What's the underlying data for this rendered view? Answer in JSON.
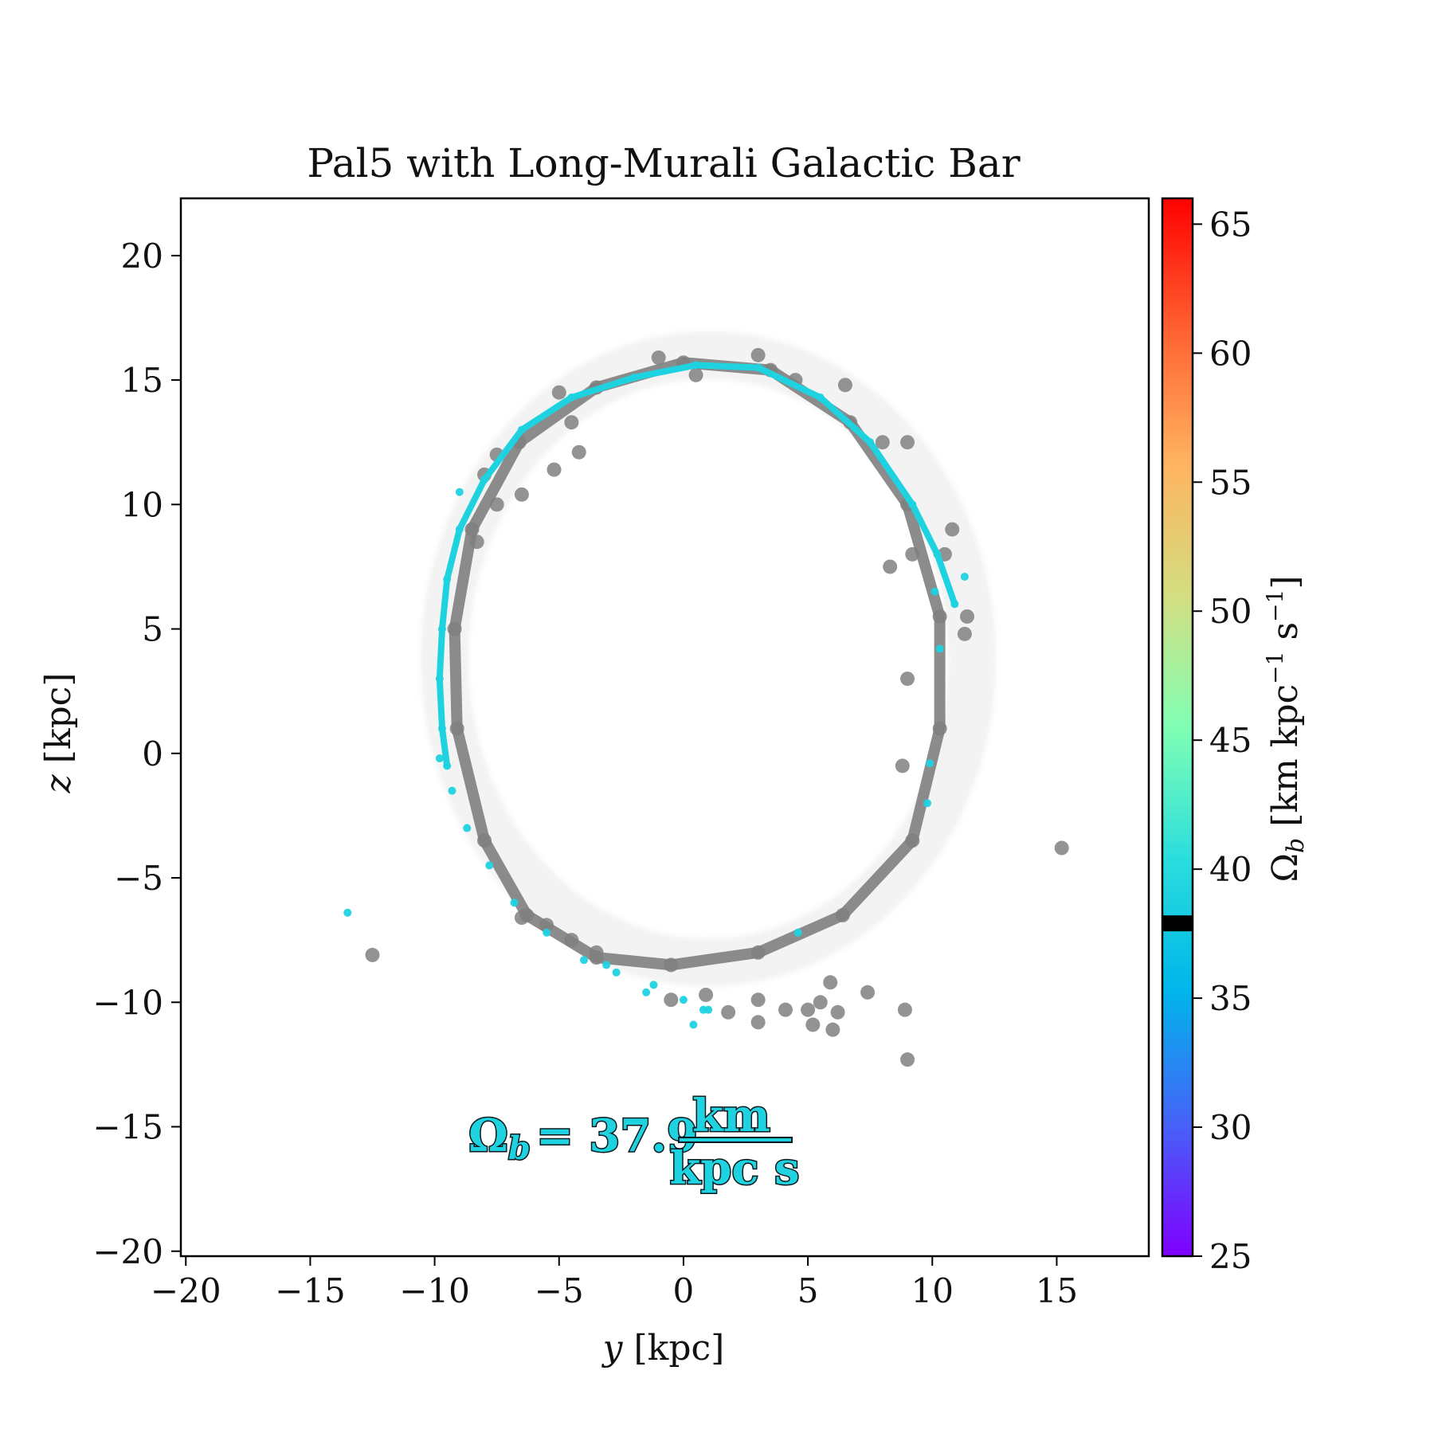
{
  "chart_data": {
    "type": "scatter",
    "title": "Pal5 with Long-Murali Galactic Bar",
    "xlabel_var": "y",
    "xlabel_unit": "[kpc]",
    "ylabel_var": "z",
    "ylabel_unit": "[kpc]",
    "xlim": [
      -20.2,
      18.7
    ],
    "ylim": [
      -20.2,
      22.3
    ],
    "xticks": [
      -20,
      -15,
      -10,
      -5,
      0,
      5,
      10,
      15
    ],
    "yticks": [
      20,
      15,
      10,
      5,
      0,
      -5,
      -10,
      -15,
      -20
    ],
    "grid": false,
    "colorbar": {
      "label": "Ω_b [km kpc⁻¹ s⁻¹]",
      "label_sym": "Ω",
      "label_sub": "b",
      "label_rest": " [km kpc",
      "label_exp1": "−1",
      "label_mid": " s",
      "label_exp2": "−1",
      "label_end": "]",
      "range": [
        25,
        66
      ],
      "ticks": [
        25,
        30,
        35,
        40,
        45,
        50,
        55,
        60,
        65
      ],
      "colormap": "rainbow",
      "marker_value": 37.9
    },
    "annotation": {
      "lhs": "Ω",
      "lhs_sub": "b",
      "equals": "= 37.9",
      "numerator": "km",
      "denominator": "kpc s",
      "value": 37.9
    },
    "series": [
      {
        "color": "#808080",
        "points": [
          [
            -8.0,
            -3.5
          ],
          [
            -9.1,
            1.0
          ],
          [
            -9.2,
            5.0
          ],
          [
            -8.5,
            9.0
          ],
          [
            -6.6,
            12.5
          ],
          [
            -3.5,
            14.7
          ],
          [
            0.0,
            15.7
          ],
          [
            3.5,
            15.4
          ],
          [
            6.7,
            13.3
          ],
          [
            9.0,
            10.0
          ],
          [
            10.3,
            5.5
          ],
          [
            10.3,
            1.0
          ],
          [
            9.2,
            -3.5
          ],
          [
            6.4,
            -6.5
          ],
          [
            3.0,
            -8.0
          ],
          [
            -0.5,
            -8.5
          ],
          [
            -3.5,
            -8.2
          ],
          [
            -6.3,
            -6.5
          ],
          [
            -5.0,
            14.5
          ],
          [
            -1.0,
            15.9
          ],
          [
            3.0,
            16.0
          ],
          [
            6.5,
            14.8
          ],
          [
            9.0,
            12.5
          ],
          [
            10.8,
            9.0
          ],
          [
            11.4,
            5.5
          ],
          [
            -7.5,
            12.0
          ],
          [
            -4.5,
            13.3
          ],
          [
            0.5,
            15.2
          ],
          [
            4.5,
            15.0
          ],
          [
            8.0,
            12.5
          ],
          [
            10.5,
            8.0
          ],
          [
            11.3,
            4.8
          ],
          [
            -4.2,
            12.1
          ],
          [
            -5.2,
            11.4
          ],
          [
            -6.5,
            10.4
          ],
          [
            -7.5,
            10.0
          ],
          [
            -8.3,
            8.5
          ],
          [
            0.9,
            -9.7
          ],
          [
            3.0,
            -9.9
          ],
          [
            5.5,
            -10.0
          ],
          [
            -0.5,
            -9.9
          ],
          [
            1.8,
            -10.4
          ],
          [
            3.0,
            -10.8
          ],
          [
            -5.5,
            -6.9
          ],
          [
            -6.5,
            -6.6
          ],
          [
            -4.5,
            -7.5
          ],
          [
            -3.5,
            -8.0
          ],
          [
            -12.5,
            -8.1
          ],
          [
            4.1,
            -10.3
          ],
          [
            5.0,
            -10.3
          ],
          [
            5.2,
            -10.9
          ],
          [
            6.2,
            -10.4
          ],
          [
            6.0,
            -11.1
          ],
          [
            5.9,
            -9.2
          ],
          [
            7.4,
            -9.6
          ],
          [
            8.9,
            -10.3
          ],
          [
            9.0,
            -12.3
          ],
          [
            15.2,
            -3.8
          ],
          [
            9.2,
            8.0
          ],
          [
            9.0,
            3.0
          ],
          [
            8.8,
            -0.5
          ],
          [
            8.3,
            7.5
          ],
          [
            -8.0,
            11.2
          ]
        ]
      },
      {
        "color": "#1fd2e0",
        "points": [
          [
            -9.5,
            -0.5
          ],
          [
            -9.7,
            1.0
          ],
          [
            -9.8,
            3.0
          ],
          [
            -9.7,
            5.0
          ],
          [
            -9.5,
            7.0
          ],
          [
            -9.0,
            9.0
          ],
          [
            -8.0,
            11.0
          ],
          [
            -6.5,
            13.0
          ],
          [
            -4.5,
            14.3
          ],
          [
            -2.0,
            15.1
          ],
          [
            0.5,
            15.6
          ],
          [
            3.0,
            15.5
          ],
          [
            5.5,
            14.3
          ],
          [
            7.5,
            12.5
          ],
          [
            9.2,
            10.0
          ],
          [
            10.2,
            8.0
          ],
          [
            10.9,
            6.0
          ],
          [
            -9.3,
            -1.5
          ],
          [
            -8.7,
            -3.0
          ],
          [
            -7.8,
            -4.5
          ],
          [
            -6.8,
            -6.0
          ],
          [
            -5.5,
            -7.2
          ],
          [
            -4.0,
            -8.3
          ],
          [
            -2.7,
            -8.8
          ],
          [
            -1.2,
            -9.3
          ],
          [
            0.0,
            -9.9
          ],
          [
            0.8,
            -10.3
          ],
          [
            -13.5,
            -6.4
          ],
          [
            4.6,
            -7.2
          ],
          [
            11.3,
            7.1
          ],
          [
            9.9,
            -0.4
          ],
          [
            10.3,
            4.2
          ],
          [
            0.4,
            -10.9
          ],
          [
            1.0,
            -10.3
          ],
          [
            -1.5,
            -9.6
          ],
          [
            -3.1,
            -8.5
          ],
          [
            -9.0,
            10.5
          ],
          [
            -9.8,
            -0.2
          ],
          [
            9.8,
            -2.0
          ],
          [
            10.1,
            6.5
          ]
        ]
      }
    ]
  }
}
